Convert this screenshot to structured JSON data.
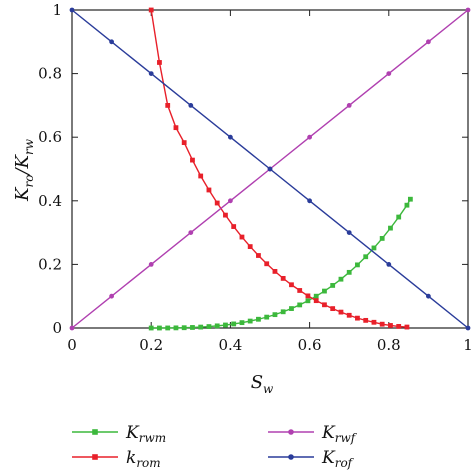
{
  "chart_data": {
    "type": "line",
    "xlabel": "S",
    "xlabel_sub": "w",
    "ylabel": "K",
    "ylabel_sub_1": "ro",
    "ylabel_mid": "/K",
    "ylabel_sub_2": "rw",
    "xlim": [
      0,
      1
    ],
    "ylim": [
      0,
      1
    ],
    "x_ticks": [
      "0",
      "0.2",
      "0.4",
      "0.6",
      "0.8",
      "1"
    ],
    "y_ticks": [
      "0",
      "0.2",
      "0.4",
      "0.6",
      "0.8",
      "1"
    ],
    "grid": false,
    "legend_position": "bottom",
    "series": [
      {
        "name": "K",
        "name_sub": "rwm",
        "color": "#3cb83c",
        "marker": "square",
        "x": [
          0.2,
          0.2208,
          0.2417,
          0.2625,
          0.2833,
          0.3042,
          0.325,
          0.3458,
          0.3667,
          0.3875,
          0.4083,
          0.4292,
          0.45,
          0.4708,
          0.4917,
          0.5125,
          0.5333,
          0.5542,
          0.575,
          0.5958,
          0.6167,
          0.6375,
          0.6583,
          0.6792,
          0.7,
          0.7208,
          0.7417,
          0.7625,
          0.7833,
          0.8042,
          0.825,
          0.8458,
          0.8545
        ],
        "y": [
          0.0,
          0.0,
          0.0001,
          0.0004,
          0.0009,
          0.0017,
          0.0029,
          0.0045,
          0.0067,
          0.0094,
          0.0128,
          0.0169,
          0.0218,
          0.0275,
          0.0342,
          0.042,
          0.051,
          0.0611,
          0.0726,
          0.0856,
          0.1,
          0.1161,
          0.1339,
          0.1535,
          0.175,
          0.1985,
          0.2241,
          0.2518,
          0.2817,
          0.3141,
          0.3489,
          0.3862,
          0.405
        ]
      },
      {
        "name": "k",
        "name_sub": "rom",
        "color": "#e8202a",
        "marker": "square",
        "x": [
          0.2,
          0.2208,
          0.2417,
          0.2625,
          0.2833,
          0.3042,
          0.325,
          0.3458,
          0.3667,
          0.3875,
          0.4083,
          0.4292,
          0.45,
          0.4708,
          0.4917,
          0.5125,
          0.5333,
          0.5542,
          0.575,
          0.5958,
          0.6167,
          0.6375,
          0.6583,
          0.6792,
          0.7,
          0.7208,
          0.7417,
          0.7625,
          0.7833,
          0.8042,
          0.825,
          0.8458
        ],
        "y": [
          1.0,
          0.835,
          0.7,
          0.63,
          0.583,
          0.528,
          0.478,
          0.434,
          0.393,
          0.355,
          0.319,
          0.286,
          0.256,
          0.228,
          0.202,
          0.178,
          0.156,
          0.136,
          0.118,
          0.101,
          0.086,
          0.073,
          0.061,
          0.05,
          0.04,
          0.031,
          0.024,
          0.018,
          0.012,
          0.008,
          0.005,
          0.003
        ]
      },
      {
        "name": "K",
        "name_sub": "rwf",
        "color": "#b040b0",
        "marker": "circle",
        "x": [
          0,
          0.1,
          0.2,
          0.3,
          0.4,
          0.5,
          0.6,
          0.7,
          0.8,
          0.9,
          1.0
        ],
        "y": [
          0,
          0.1,
          0.2,
          0.3,
          0.4,
          0.5,
          0.6,
          0.7,
          0.8,
          0.9,
          1.0
        ]
      },
      {
        "name": "K",
        "name_sub": "rof",
        "color": "#2a3c9a",
        "marker": "circle",
        "x": [
          0,
          0.1,
          0.2,
          0.3,
          0.4,
          0.5,
          0.6,
          0.7,
          0.8,
          0.9,
          1.0
        ],
        "y": [
          1.0,
          0.9,
          0.8,
          0.7,
          0.6,
          0.5,
          0.4,
          0.3,
          0.2,
          0.1,
          0
        ]
      }
    ]
  }
}
